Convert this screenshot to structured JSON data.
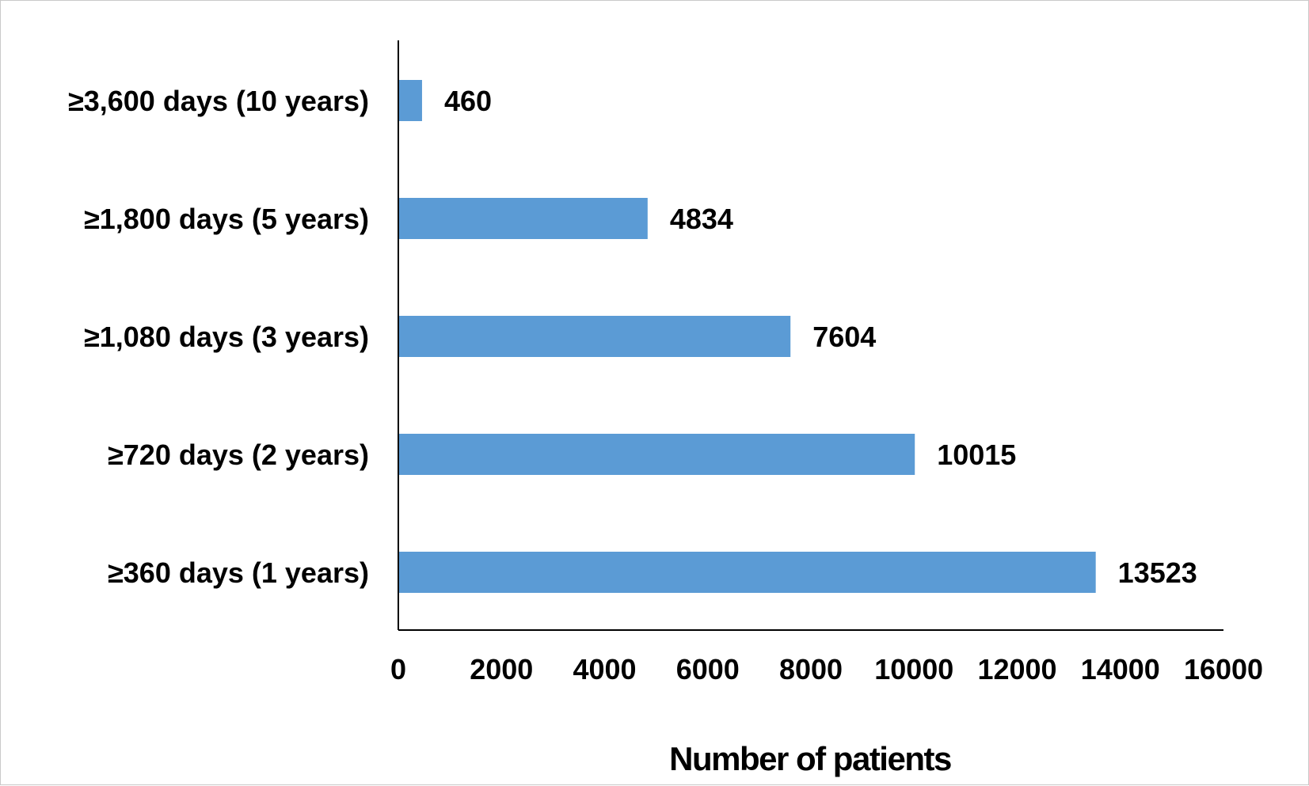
{
  "chart_data": {
    "type": "bar",
    "orientation": "horizontal",
    "categories": [
      "≥3,600 days (10 years)",
      "≥1,800 days (5 years)",
      "≥1,080 days (3 years)",
      "≥720 days (2 years)",
      "≥360 days (1 years)"
    ],
    "values": [
      460,
      4834,
      7604,
      10015,
      13523
    ],
    "data_labels": [
      "460",
      "4834",
      "7604",
      "10015",
      "13523"
    ],
    "xlabel": "Number of patients",
    "ylabel": "",
    "xlim": [
      0,
      16000
    ],
    "xticks": [
      0,
      2000,
      4000,
      6000,
      8000,
      10000,
      12000,
      14000,
      16000
    ],
    "xtick_labels": [
      "0",
      "2000",
      "4000",
      "6000",
      "8000",
      "10000",
      "12000",
      "14000",
      "16000"
    ],
    "bar_color": "#5b9bd5",
    "grid": false,
    "legend": "none"
  }
}
